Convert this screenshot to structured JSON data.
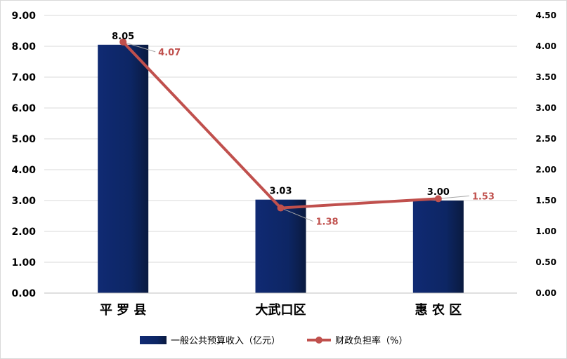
{
  "chart_data": {
    "type": "bar",
    "categories": [
      "平罗县",
      "大武口区",
      "惠农区"
    ],
    "category_display": [
      "平 罗 县",
      "大武口区",
      "惠 农 区"
    ],
    "series": [
      {
        "name": "一般公共预算收入（亿元）",
        "type": "bar",
        "axis": "left",
        "values": [
          8.05,
          3.03,
          3.0
        ],
        "data_labels": [
          "8.05",
          "3.03",
          "3.00"
        ],
        "color": "#0f2a6b"
      },
      {
        "name": "财政负担率（%）",
        "type": "line",
        "axis": "right",
        "values": [
          4.07,
          1.38,
          1.53
        ],
        "data_labels": [
          "4.07",
          "1.38",
          "1.53"
        ],
        "color": "#c0504d"
      }
    ],
    "y_left": {
      "ylim": [
        0,
        9
      ],
      "ticks": [
        "0.00",
        "1.00",
        "2.00",
        "3.00",
        "4.00",
        "5.00",
        "6.00",
        "7.00",
        "8.00",
        "9.00"
      ]
    },
    "y_right": {
      "ylim": [
        0,
        4.5
      ],
      "ticks": [
        "0.00",
        "0.50",
        "1.00",
        "1.50",
        "2.00",
        "2.50",
        "3.00",
        "3.50",
        "4.00",
        "4.50"
      ]
    },
    "grid": true,
    "legend_position": "bottom",
    "title": "",
    "xlabel": "",
    "ylabel": ""
  }
}
